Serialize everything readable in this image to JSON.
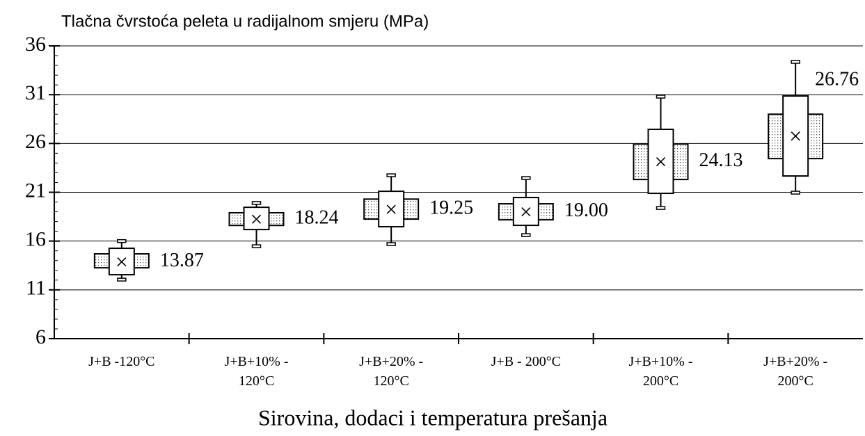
{
  "chart_data": {
    "type": "box",
    "title": "Tlačna čvrstoća peleta u radijalnom smjeru (MPa)",
    "x_label": "Sirovina, dodaci i temperatura prešanja",
    "categories": [
      [
        "J+B -120°C"
      ],
      [
        "J+B+10% -",
        "120°C"
      ],
      [
        "J+B+20% -",
        "120°C"
      ],
      [
        "J+B - 200°C"
      ],
      [
        "J+B+10% -",
        "200°C"
      ],
      [
        "J+B+20% -",
        "200°C"
      ]
    ],
    "min": [
      12.05,
      15.47,
      15.69,
      16.61,
      19.39,
      20.96
    ],
    "box_low": [
      12.55,
      17.18,
      17.47,
      17.61,
      20.89,
      22.67
    ],
    "band_low": [
      13.26,
      17.6,
      18.25,
      18.18,
      22.31,
      24.45
    ],
    "mean": [
      13.87,
      18.24,
      19.25,
      19.0,
      24.13,
      26.76
    ],
    "value_labels": [
      "13.87",
      "18.24",
      "19.25",
      "19.00",
      "24.13",
      "26.76"
    ],
    "band_high": [
      14.69,
      18.9,
      20.3,
      19.82,
      25.95,
      29.0
    ],
    "box_high": [
      15.26,
      19.46,
      21.1,
      20.46,
      27.45,
      30.87
    ],
    "max": [
      16.0,
      19.9,
      22.74,
      22.46,
      30.8,
      34.36
    ],
    "ylim": [
      6,
      36
    ],
    "yticks": [
      6,
      11,
      16,
      21,
      26,
      31,
      36
    ],
    "grid": true
  }
}
